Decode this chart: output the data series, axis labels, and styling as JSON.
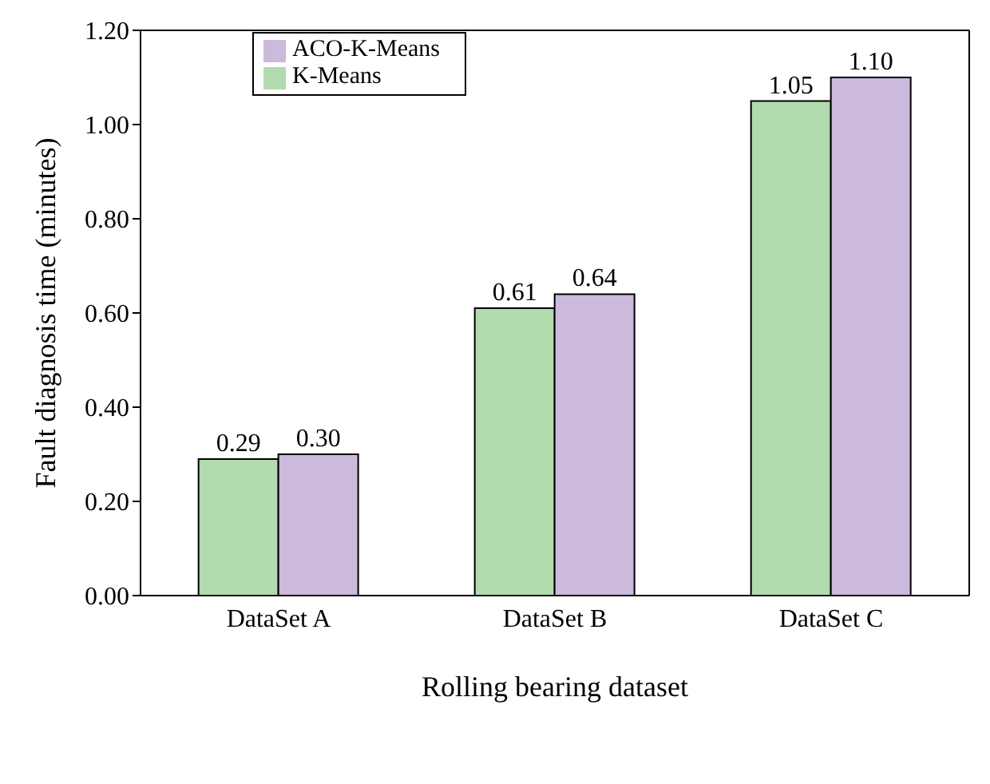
{
  "chart_data": {
    "type": "bar",
    "xlabel": "Rolling bearing dataset",
    "ylabel": "Fault diagnosis time (minutes)",
    "categories": [
      "DataSet A",
      "DataSet B",
      "DataSet C"
    ],
    "series": [
      {
        "name": "K-Means",
        "color": "#b2dbb0",
        "values": [
          0.29,
          0.61,
          1.05
        ],
        "value_labels": [
          "0.29",
          "0.61",
          "1.05"
        ]
      },
      {
        "name": "ACO-K-Means",
        "color": "#cbbadc",
        "values": [
          0.3,
          0.64,
          1.1
        ],
        "value_labels": [
          "0.30",
          "0.64",
          "1.10"
        ]
      }
    ],
    "ylim": [
      0,
      1.2
    ],
    "yticks": [
      {
        "value": 0,
        "label": "0.00"
      },
      {
        "value": 0.2,
        "label": "0.20"
      },
      {
        "value": 0.4,
        "label": "0.40"
      },
      {
        "value": 0.6,
        "label": "0.60"
      },
      {
        "value": 0.8,
        "label": "0.80"
      },
      {
        "value": 1.0,
        "label": "1.00"
      },
      {
        "value": 1.2,
        "label": "1.20"
      }
    ],
    "grid": false,
    "legend": "top left"
  }
}
